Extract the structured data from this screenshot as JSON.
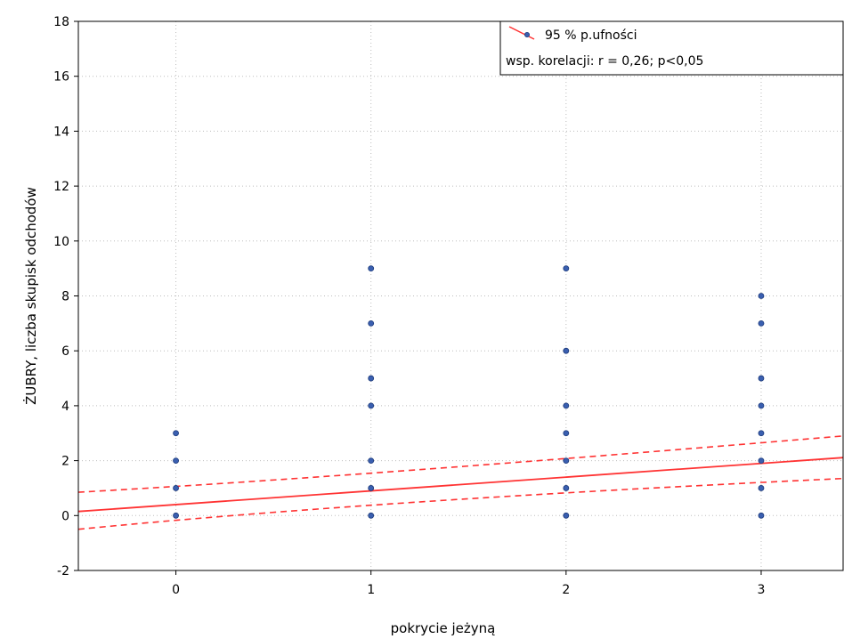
{
  "chart_data": {
    "type": "scatter",
    "xlabel": "pokrycie jeżyną",
    "ylabel": "ŻUBRY, liczba skupisk odchodów",
    "xlim": [
      -0.5,
      3.42
    ],
    "ylim": [
      -2,
      18
    ],
    "xticks": [
      "0",
      "1",
      "2",
      "3"
    ],
    "yticks": [
      "-2",
      "0",
      "2",
      "4",
      "6",
      "8",
      "10",
      "12",
      "14",
      "16",
      "18"
    ],
    "grid": true,
    "points": [
      {
        "x": 0,
        "y": 0
      },
      {
        "x": 0,
        "y": 1
      },
      {
        "x": 0,
        "y": 2
      },
      {
        "x": 0,
        "y": 3
      },
      {
        "x": 1,
        "y": 0
      },
      {
        "x": 1,
        "y": 1
      },
      {
        "x": 1,
        "y": 2
      },
      {
        "x": 1,
        "y": 4
      },
      {
        "x": 1,
        "y": 5
      },
      {
        "x": 1,
        "y": 7
      },
      {
        "x": 1,
        "y": 9
      },
      {
        "x": 2,
        "y": 0
      },
      {
        "x": 2,
        "y": 1
      },
      {
        "x": 2,
        "y": 2
      },
      {
        "x": 2,
        "y": 3
      },
      {
        "x": 2,
        "y": 4
      },
      {
        "x": 2,
        "y": 6
      },
      {
        "x": 2,
        "y": 9
      },
      {
        "x": 3,
        "y": 0
      },
      {
        "x": 3,
        "y": 1
      },
      {
        "x": 3,
        "y": 2
      },
      {
        "x": 3,
        "y": 3
      },
      {
        "x": 3,
        "y": 4
      },
      {
        "x": 3,
        "y": 5
      },
      {
        "x": 3,
        "y": 7
      },
      {
        "x": 3,
        "y": 8
      }
    ],
    "regression": {
      "intercept": 0.4,
      "slope": 0.5
    },
    "confidence_band": {
      "upper": [
        [
          -0.5,
          0.85
        ],
        [
          3.42,
          2.9
        ]
      ],
      "upper_mid": [
        1.0,
        1.45
      ],
      "lower": [
        [
          -0.5,
          -0.5
        ],
        [
          3.42,
          1.35
        ]
      ],
      "lower_mid": [
        1.0,
        0.55
      ]
    },
    "legend": {
      "position": "top-right",
      "entries": [
        "95 % p.ufności",
        "wsp. korelacji: r = 0,26; p<0,05"
      ]
    },
    "colors": {
      "points": "#3a5fb0",
      "regression": "#ff3333",
      "grid": "#bdbdbd"
    }
  }
}
